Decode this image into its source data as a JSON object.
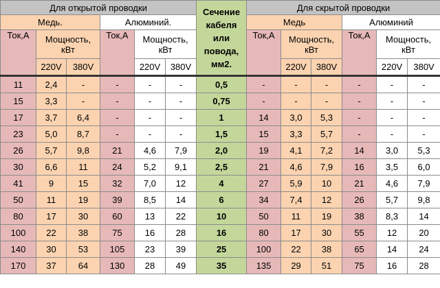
{
  "open": {
    "title": "Для открытой проводки",
    "copper": "Медь.",
    "aluminum": "Алюминий."
  },
  "hidden": {
    "title": "Для скрытой проводки",
    "copper": "Медь",
    "aluminum": "Алюминий"
  },
  "section_header": "Сечение кабеля или повода, мм2.",
  "column_labels": {
    "current": "Ток,А",
    "power": "Мощность, кВт",
    "v220": "220V",
    "v380": "380V"
  },
  "rows": [
    [
      "11",
      "2,4",
      "-",
      "-",
      "-",
      "-",
      "0,5",
      "-",
      "-",
      "-",
      "-",
      "-",
      "-"
    ],
    [
      "15",
      "3,3",
      "-",
      "-",
      "-",
      "-",
      "0,75",
      "-",
      "-",
      "-",
      "-",
      "-",
      "-"
    ],
    [
      "17",
      "3,7",
      "6,4",
      "-",
      "-",
      "-",
      "1",
      "14",
      "3,0",
      "5,3",
      "-",
      "-",
      "-"
    ],
    [
      "23",
      "5,0",
      "8,7",
      "-",
      "-",
      "-",
      "1,5",
      "15",
      "3,3",
      "5,7",
      "-",
      "-",
      "-"
    ],
    [
      "26",
      "5,7",
      "9,8",
      "21",
      "4,6",
      "7,9",
      "2,0",
      "19",
      "4,1",
      "7,2",
      "14",
      "3,0",
      "5,3"
    ],
    [
      "30",
      "6,6",
      "11",
      "24",
      "5,2",
      "9,1",
      "2,5",
      "21",
      "4,6",
      "7,9",
      "16",
      "3,5",
      "6,0"
    ],
    [
      "41",
      "9",
      "15",
      "32",
      "7,0",
      "12",
      "4",
      "27",
      "5,9",
      "10",
      "21",
      "4,6",
      "7,9"
    ],
    [
      "50",
      "11",
      "19",
      "39",
      "8,5",
      "14",
      "6",
      "34",
      "7,4",
      "12",
      "26",
      "5,7",
      "9,8"
    ],
    [
      "80",
      "17",
      "30",
      "60",
      "13",
      "22",
      "10",
      "50",
      "11",
      "19",
      "38",
      "8,3",
      "14"
    ],
    [
      "100",
      "22",
      "38",
      "75",
      "16",
      "28",
      "16",
      "80",
      "17",
      "30",
      "55",
      "12",
      "20"
    ],
    [
      "140",
      "30",
      "53",
      "105",
      "23",
      "39",
      "25",
      "100",
      "22",
      "38",
      "65",
      "14",
      "24"
    ],
    [
      "170",
      "37",
      "64",
      "130",
      "28",
      "49",
      "35",
      "135",
      "29",
      "51",
      "75",
      "16",
      "28"
    ]
  ]
}
